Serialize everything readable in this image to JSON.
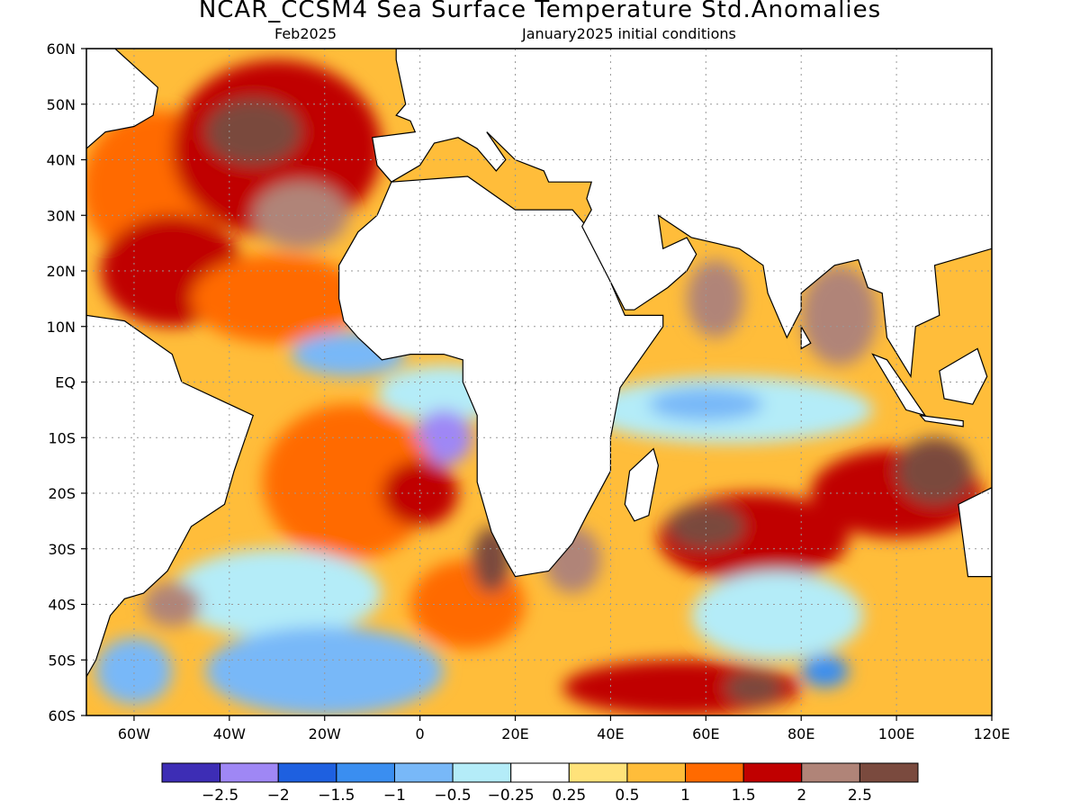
{
  "title": "NCAR_CCSM4 Sea Surface Temperature Std.Anomalies",
  "subtitle_left": "Feb2025",
  "subtitle_right": "January2025 initial conditions",
  "map": {
    "lon_range": [
      -70,
      120
    ],
    "lat_range": [
      -60,
      60
    ],
    "lon_ticks": [
      {
        "value": -60,
        "label": "60W"
      },
      {
        "value": -40,
        "label": "40W"
      },
      {
        "value": -20,
        "label": "20W"
      },
      {
        "value": 0,
        "label": "0"
      },
      {
        "value": 20,
        "label": "20E"
      },
      {
        "value": 40,
        "label": "40E"
      },
      {
        "value": 60,
        "label": "60E"
      },
      {
        "value": 80,
        "label": "80E"
      },
      {
        "value": 100,
        "label": "100E"
      },
      {
        "value": 120,
        "label": "120E"
      }
    ],
    "lat_ticks": [
      {
        "value": 60,
        "label": "60N"
      },
      {
        "value": 50,
        "label": "50N"
      },
      {
        "value": 40,
        "label": "40N"
      },
      {
        "value": 30,
        "label": "30N"
      },
      {
        "value": 20,
        "label": "20N"
      },
      {
        "value": 10,
        "label": "10N"
      },
      {
        "value": 0,
        "label": "EQ"
      },
      {
        "value": -10,
        "label": "10S"
      },
      {
        "value": -20,
        "label": "20S"
      },
      {
        "value": -30,
        "label": "30S"
      },
      {
        "value": -40,
        "label": "40S"
      },
      {
        "value": -50,
        "label": "50S"
      },
      {
        "value": -60,
        "label": "60S"
      }
    ],
    "grid": true
  },
  "colorbar": {
    "colors": [
      "#3d2db5",
      "#9f87f5",
      "#1e60e0",
      "#3a8ef0",
      "#78b8f8",
      "#b4ecf8",
      "#ffffff",
      "#ffe27a",
      "#ffbd3a",
      "#ff6a00",
      "#c00000",
      "#b08478",
      "#7a4a3e"
    ],
    "labels": [
      "−2.5",
      "−2",
      "−1.5",
      "−1",
      "−0.5",
      "−0.25",
      "0.25",
      "0.5",
      "1",
      "1.5",
      "2",
      "2.5"
    ]
  },
  "anomaly_regions": [
    {
      "lon": -55,
      "lat": 35,
      "rx": 16,
      "ry": 14,
      "level": 1
    },
    {
      "lon": -30,
      "lat": 42,
      "rx": 22,
      "ry": 16,
      "level": 1.5
    },
    {
      "lon": -35,
      "lat": 45,
      "rx": 10,
      "ry": 6,
      "level": 2.5
    },
    {
      "lon": -52,
      "lat": 20,
      "rx": 15,
      "ry": 10,
      "level": 1.5
    },
    {
      "lon": -30,
      "lat": 15,
      "rx": 18,
      "ry": 8,
      "level": 1
    },
    {
      "lon": -25,
      "lat": 30,
      "rx": 10,
      "ry": 6,
      "level": 2
    },
    {
      "lon": -15,
      "lat": 5,
      "rx": 12,
      "ry": 4,
      "level": -1
    },
    {
      "lon": 5,
      "lat": -2,
      "rx": 14,
      "ry": 5,
      "level": -0.5
    },
    {
      "lon": 5,
      "lat": -10,
      "rx": 6,
      "ry": 5,
      "level": -2.5
    },
    {
      "lon": -15,
      "lat": -18,
      "rx": 18,
      "ry": 14,
      "level": 1
    },
    {
      "lon": 0,
      "lat": -20,
      "rx": 8,
      "ry": 6,
      "level": 1.5
    },
    {
      "lon": -30,
      "lat": -38,
      "rx": 22,
      "ry": 8,
      "level": -0.5
    },
    {
      "lon": -20,
      "lat": -52,
      "rx": 25,
      "ry": 8,
      "level": -1
    },
    {
      "lon": 10,
      "lat": -40,
      "rx": 12,
      "ry": 8,
      "level": 1
    },
    {
      "lon": 15,
      "lat": -32,
      "rx": 4,
      "ry": 6,
      "level": 2.5
    },
    {
      "lon": 32,
      "lat": -32,
      "rx": 6,
      "ry": 6,
      "level": 2
    },
    {
      "lon": 65,
      "lat": -5,
      "rx": 30,
      "ry": 6,
      "level": -0.5
    },
    {
      "lon": 60,
      "lat": -4,
      "rx": 12,
      "ry": 3,
      "level": -1
    },
    {
      "lon": 62,
      "lat": 15,
      "rx": 6,
      "ry": 7,
      "level": 2
    },
    {
      "lon": 88,
      "lat": 12,
      "rx": 8,
      "ry": 9,
      "level": 2
    },
    {
      "lon": 70,
      "lat": -28,
      "rx": 20,
      "ry": 8,
      "level": 1.5
    },
    {
      "lon": 60,
      "lat": -26,
      "rx": 8,
      "ry": 4,
      "level": 2.5
    },
    {
      "lon": 100,
      "lat": -20,
      "rx": 18,
      "ry": 8,
      "level": 1.5
    },
    {
      "lon": 108,
      "lat": -16,
      "rx": 8,
      "ry": 6,
      "level": 2.5
    },
    {
      "lon": 75,
      "lat": -42,
      "rx": 18,
      "ry": 8,
      "level": -0.5
    },
    {
      "lon": 55,
      "lat": -55,
      "rx": 25,
      "ry": 5,
      "level": 1.5
    },
    {
      "lon": 70,
      "lat": -55,
      "rx": 6,
      "ry": 3,
      "level": 2.5
    },
    {
      "lon": 85,
      "lat": -52,
      "rx": 5,
      "ry": 3,
      "level": -1.5
    },
    {
      "lon": -60,
      "lat": -52,
      "rx": 8,
      "ry": 6,
      "level": -1
    },
    {
      "lon": -52,
      "lat": -40,
      "rx": 6,
      "ry": 4,
      "level": 2
    }
  ],
  "land_masses": [
    {
      "name": "africa",
      "outline": [
        [
          -17,
          15
        ],
        [
          -17,
          21
        ],
        [
          -13,
          27
        ],
        [
          -9,
          30
        ],
        [
          -6,
          36
        ],
        [
          10,
          37
        ],
        [
          20,
          31
        ],
        [
          32,
          31
        ],
        [
          35,
          28
        ],
        [
          43,
          12
        ],
        [
          51,
          12
        ],
        [
          51,
          10
        ],
        [
          42,
          -1
        ],
        [
          40,
          -10
        ],
        [
          40,
          -16
        ],
        [
          35,
          -24
        ],
        [
          32,
          -29
        ],
        [
          27,
          -34
        ],
        [
          20,
          -35
        ],
        [
          18,
          -32
        ],
        [
          15,
          -27
        ],
        [
          12,
          -18
        ],
        [
          12,
          -6
        ],
        [
          9,
          0
        ],
        [
          9,
          4
        ],
        [
          5,
          5
        ],
        [
          -2,
          5
        ],
        [
          -8,
          4
        ],
        [
          -13,
          8
        ],
        [
          -16,
          11
        ]
      ]
    },
    {
      "name": "south-america",
      "outline": [
        [
          -70,
          12
        ],
        [
          -62,
          11
        ],
        [
          -52,
          5
        ],
        [
          -50,
          0
        ],
        [
          -35,
          -6
        ],
        [
          -39,
          -16
        ],
        [
          -41,
          -22
        ],
        [
          -48,
          -26
        ],
        [
          -53,
          -34
        ],
        [
          -58,
          -38
        ],
        [
          -62,
          -39
        ],
        [
          -65,
          -42
        ],
        [
          -68,
          -50
        ],
        [
          -70,
          -53
        ],
        [
          -70,
          12
        ]
      ]
    },
    {
      "name": "north-america",
      "outline": [
        [
          -70,
          60
        ],
        [
          -64,
          60
        ],
        [
          -55,
          53
        ],
        [
          -56,
          48
        ],
        [
          -60,
          46
        ],
        [
          -66,
          45
        ],
        [
          -70,
          42
        ],
        [
          -70,
          60
        ]
      ]
    },
    {
      "name": "europe-asia",
      "outline": [
        [
          -10,
          44
        ],
        [
          -9,
          39
        ],
        [
          -6,
          36
        ],
        [
          0,
          39
        ],
        [
          3,
          43
        ],
        [
          8,
          44
        ],
        [
          12,
          42
        ],
        [
          16,
          38
        ],
        [
          18,
          40
        ],
        [
          14,
          45
        ],
        [
          20,
          40
        ],
        [
          26,
          38
        ],
        [
          27,
          36
        ],
        [
          36,
          36
        ],
        [
          35,
          33
        ],
        [
          36,
          31
        ],
        [
          34,
          28
        ],
        [
          43,
          13
        ],
        [
          45,
          13
        ],
        [
          52,
          17
        ],
        [
          56,
          20
        ],
        [
          58,
          23
        ],
        [
          56,
          26
        ],
        [
          51,
          24
        ],
        [
          50,
          30
        ],
        [
          57,
          26
        ],
        [
          62,
          25
        ],
        [
          67,
          24
        ],
        [
          72,
          21
        ],
        [
          73,
          16
        ],
        [
          77,
          8
        ],
        [
          80,
          13
        ],
        [
          80,
          16
        ],
        [
          87,
          21
        ],
        [
          92,
          22
        ],
        [
          94,
          17
        ],
        [
          97,
          16
        ],
        [
          98,
          8
        ],
        [
          103,
          1
        ],
        [
          104,
          10
        ],
        [
          109,
          12
        ],
        [
          108,
          21
        ],
        [
          120,
          24
        ],
        [
          120,
          60
        ],
        [
          -5,
          60
        ],
        [
          -5,
          58
        ],
        [
          -3,
          50
        ],
        [
          -5,
          48
        ],
        [
          -2,
          47
        ],
        [
          -1,
          45
        ]
      ]
    },
    {
      "name": "madagascar",
      "outline": [
        [
          44,
          -16
        ],
        [
          49,
          -12
        ],
        [
          50,
          -15
        ],
        [
          48,
          -24
        ],
        [
          45,
          -25
        ],
        [
          43,
          -22
        ]
      ]
    },
    {
      "name": "sri-lanka",
      "outline": [
        [
          80,
          10
        ],
        [
          82,
          7
        ],
        [
          80,
          6
        ]
      ]
    },
    {
      "name": "sumatra",
      "outline": [
        [
          95,
          5
        ],
        [
          98,
          4
        ],
        [
          106,
          -6
        ],
        [
          102,
          -5
        ]
      ]
    },
    {
      "name": "java",
      "outline": [
        [
          105,
          -6
        ],
        [
          114,
          -7
        ],
        [
          114,
          -8
        ],
        [
          106,
          -7
        ]
      ]
    },
    {
      "name": "borneo",
      "outline": [
        [
          109,
          2
        ],
        [
          117,
          6
        ],
        [
          119,
          1
        ],
        [
          116,
          -4
        ],
        [
          110,
          -3
        ]
      ]
    },
    {
      "name": "australia",
      "outline": [
        [
          113,
          -22
        ],
        [
          120,
          -19
        ],
        [
          120,
          -35
        ],
        [
          115,
          -35
        ]
      ]
    }
  ]
}
